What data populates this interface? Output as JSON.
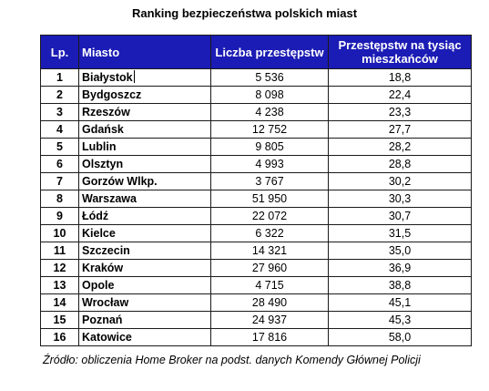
{
  "title": "Ranking bezpieczeństwa polskich miast",
  "table": {
    "headers": {
      "lp": "Lp.",
      "city": "Miasto",
      "count": "Liczba przestępstw",
      "rate": "Przestępstw na tysiąc mieszkańców"
    },
    "rows": [
      {
        "lp": "1",
        "city": "Białystok",
        "count": "5 536",
        "rate": "18,8"
      },
      {
        "lp": "2",
        "city": "Bydgoszcz",
        "count": "8 098",
        "rate": "22,4"
      },
      {
        "lp": "3",
        "city": "Rzeszów",
        "count": "4 238",
        "rate": "23,3"
      },
      {
        "lp": "4",
        "city": "Gdańsk",
        "count": "12 752",
        "rate": "27,7"
      },
      {
        "lp": "5",
        "city": "Lublin",
        "count": "9 805",
        "rate": "28,2"
      },
      {
        "lp": "6",
        "city": "Olsztyn",
        "count": "4 993",
        "rate": "28,8"
      },
      {
        "lp": "7",
        "city": "Gorzów Wlkp.",
        "count": "3 767",
        "rate": "30,2"
      },
      {
        "lp": "8",
        "city": "Warszawa",
        "count": "51 950",
        "rate": "30,3"
      },
      {
        "lp": "9",
        "city": "Łódź",
        "count": "22 072",
        "rate": "30,7"
      },
      {
        "lp": "10",
        "city": "Kielce",
        "count": "6 322",
        "rate": "31,5"
      },
      {
        "lp": "11",
        "city": "Szczecin",
        "count": "14 321",
        "rate": "35,0"
      },
      {
        "lp": "12",
        "city": "Kraków",
        "count": "27 960",
        "rate": "36,9"
      },
      {
        "lp": "13",
        "city": "Opole",
        "count": "4 715",
        "rate": "38,8"
      },
      {
        "lp": "14",
        "city": "Wrocław",
        "count": "28 490",
        "rate": "45,1"
      },
      {
        "lp": "15",
        "city": "Poznań",
        "count": "24 937",
        "rate": "45,3"
      },
      {
        "lp": "16",
        "city": "Katowice",
        "count": "17 816",
        "rate": "58,0"
      }
    ]
  },
  "source": "Źródło: obliczenia Home Broker na podst. danych Komendy Głównej Policji",
  "colors": {
    "header_background": "#1b1bb5",
    "header_text": "#ffffff",
    "border": "#1a1a1a"
  }
}
